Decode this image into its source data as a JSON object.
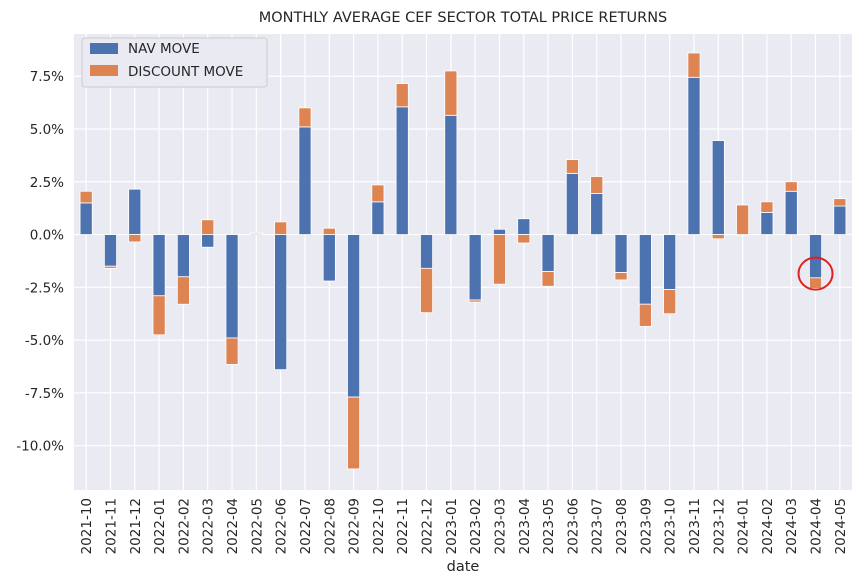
{
  "chart_data": {
    "type": "bar",
    "stacked": true,
    "title": "MONTHLY AVERAGE CEF SECTOR TOTAL PRICE RETURNS",
    "xlabel": "date",
    "ylabel": "",
    "ylim": [
      -12.1,
      9.5
    ],
    "y_ticks": [
      7.5,
      5.0,
      2.5,
      0.0,
      -2.5,
      -5.0,
      -7.5,
      -10.0
    ],
    "y_tick_labels": [
      "7.5%",
      "5.0%",
      "2.5%",
      "0.0%",
      "-2.5%",
      "-5.0%",
      "-7.5%",
      "-10.0%"
    ],
    "grid": true,
    "legend_position": "top-left",
    "categories": [
      "2021-10",
      "2021-11",
      "2021-12",
      "2022-01",
      "2022-02",
      "2022-03",
      "2022-04",
      "2022-05",
      "2022-06",
      "2022-07",
      "2022-08",
      "2022-09",
      "2022-10",
      "2022-11",
      "2022-12",
      "2023-01",
      "2023-02",
      "2023-03",
      "2023-04",
      "2023-05",
      "2023-06",
      "2023-07",
      "2023-08",
      "2023-09",
      "2023-10",
      "2023-11",
      "2023-12",
      "2024-01",
      "2024-02",
      "2024-03",
      "2024-04",
      "2024-05"
    ],
    "series": [
      {
        "name": "NAV MOVE",
        "color": "#4c72b0",
        "values": [
          1.5,
          -1.5,
          2.15,
          -2.9,
          -2.0,
          -0.6,
          -4.9,
          0.05,
          -6.4,
          5.1,
          -2.2,
          -7.7,
          1.55,
          6.05,
          -1.6,
          5.65,
          -3.1,
          0.25,
          0.75,
          -1.75,
          2.9,
          1.95,
          -1.8,
          -3.3,
          -2.6,
          7.45,
          4.45,
          0.0,
          1.05,
          2.05,
          -2.05,
          1.35
        ]
      },
      {
        "name": "DISCOUNT MOVE",
        "color": "#dd8452",
        "values": [
          0.55,
          -0.1,
          -0.35,
          -1.85,
          -1.3,
          0.7,
          -1.25,
          0.05,
          0.6,
          0.9,
          0.3,
          -3.4,
          0.8,
          1.1,
          -2.1,
          2.1,
          -0.1,
          -2.35,
          -0.4,
          -0.7,
          0.65,
          0.8,
          -0.35,
          -1.05,
          -1.15,
          1.15,
          -0.2,
          1.4,
          0.5,
          0.45,
          -0.5,
          0.35
        ]
      }
    ],
    "annotation": {
      "type": "circle",
      "category": "2024-04",
      "color": "#e02020"
    }
  }
}
